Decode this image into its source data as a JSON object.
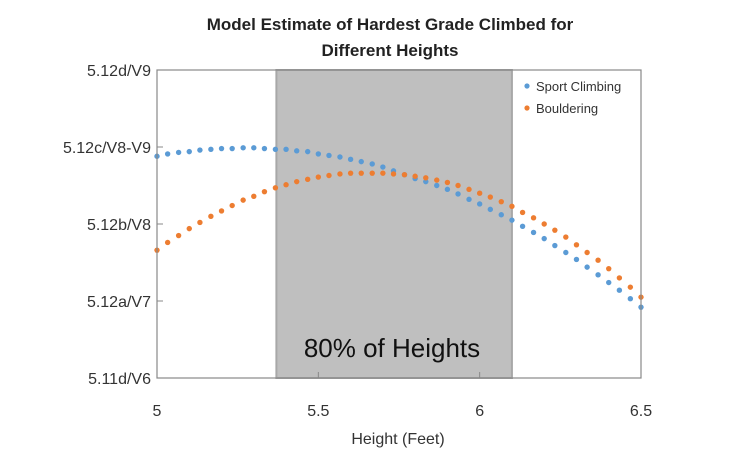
{
  "chart_data": {
    "type": "scatter",
    "title": "Model Estimate of Hardest Grade Climbed for Different Heights",
    "title_lines": [
      "Model Estimate of Hardest Grade Climbed for",
      "Different Heights"
    ],
    "xlabel": "Height (Feet)",
    "ylabel": "",
    "xlim": [
      5,
      6.5
    ],
    "ylim": [
      0,
      4
    ],
    "x_ticks": [
      5,
      5.5,
      6,
      6.5
    ],
    "x_tick_labels": [
      "5",
      "5.5",
      "6",
      "6.5"
    ],
    "y_ticks": [
      0,
      1,
      2,
      3,
      4
    ],
    "y_tick_labels": [
      "5.11d/V6",
      "5.12a/V7",
      "5.12b/V8",
      "5.12c/V8-V9",
      "5.12d/V9"
    ],
    "grid": false,
    "legend_position": "top-right",
    "shaded_region": {
      "x_start": 5.37,
      "x_end": 6.1,
      "label": "80% of Heights",
      "color": "#bfbfbf"
    },
    "x": [
      5.0,
      5.033,
      5.067,
      5.1,
      5.133,
      5.167,
      5.2,
      5.233,
      5.267,
      5.3,
      5.333,
      5.367,
      5.4,
      5.433,
      5.467,
      5.5,
      5.533,
      5.567,
      5.6,
      5.633,
      5.667,
      5.7,
      5.733,
      5.767,
      5.8,
      5.833,
      5.867,
      5.9,
      5.933,
      5.967,
      6.0,
      6.033,
      6.067,
      6.1,
      6.133,
      6.167,
      6.2,
      6.233,
      6.267,
      6.3,
      6.333,
      6.367,
      6.4,
      6.433,
      6.467,
      6.5
    ],
    "series": [
      {
        "name": "Sport Climbing",
        "color": "#5b9bd5",
        "values": [
          2.88,
          2.91,
          2.93,
          2.94,
          2.96,
          2.97,
          2.98,
          2.98,
          2.99,
          2.99,
          2.98,
          2.97,
          2.97,
          2.95,
          2.94,
          2.91,
          2.89,
          2.87,
          2.84,
          2.81,
          2.78,
          2.74,
          2.69,
          2.64,
          2.59,
          2.55,
          2.5,
          2.45,
          2.39,
          2.32,
          2.26,
          2.19,
          2.12,
          2.05,
          1.97,
          1.89,
          1.81,
          1.72,
          1.63,
          1.54,
          1.44,
          1.34,
          1.24,
          1.14,
          1.03,
          0.92
        ]
      },
      {
        "name": "Bouldering",
        "color": "#ed7d31",
        "values": [
          1.66,
          1.76,
          1.85,
          1.94,
          2.02,
          2.1,
          2.17,
          2.24,
          2.31,
          2.36,
          2.42,
          2.47,
          2.51,
          2.55,
          2.58,
          2.61,
          2.63,
          2.65,
          2.66,
          2.66,
          2.66,
          2.66,
          2.65,
          2.64,
          2.62,
          2.6,
          2.57,
          2.54,
          2.5,
          2.45,
          2.4,
          2.35,
          2.29,
          2.23,
          2.15,
          2.08,
          2.0,
          1.92,
          1.83,
          1.73,
          1.63,
          1.53,
          1.42,
          1.3,
          1.18,
          1.05
        ]
      }
    ]
  }
}
